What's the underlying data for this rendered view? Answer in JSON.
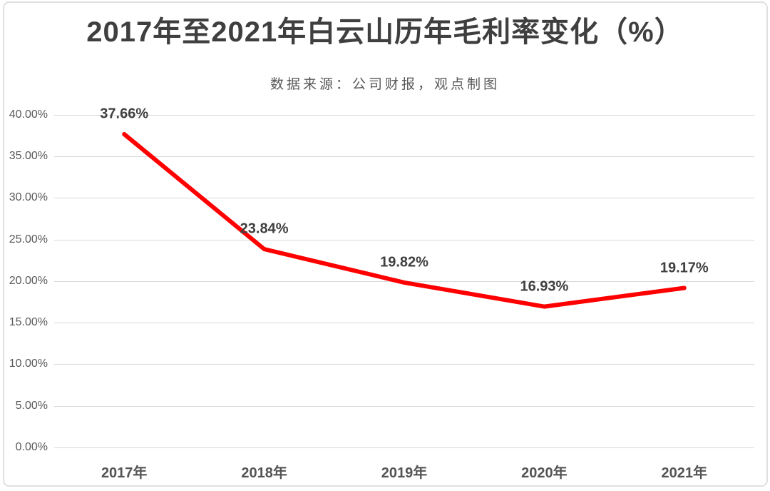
{
  "header": {
    "title": "2017年至2021年白云山历年毛利率变化（%）",
    "subtitle": "数据来源：公司财报，观点制图"
  },
  "colors": {
    "line": "#ff0000",
    "gridline": "#d9d9d9",
    "title_text": "#3f3f3f",
    "axis_text": "#595959",
    "card_border": "#e0e0e0",
    "background": "#ffffff"
  },
  "chart_data": {
    "type": "line",
    "title": "2017年至2021年白云山历年毛利率变化（%）",
    "subtitle": "数据来源：公司财报，观点制图",
    "categories": [
      "2017年",
      "2018年",
      "2019年",
      "2020年",
      "2021年"
    ],
    "series": [
      {
        "name": "毛利率",
        "values": [
          37.66,
          23.84,
          19.82,
          16.93,
          19.17
        ],
        "color": "#ff0000"
      }
    ],
    "data_labels": [
      "37.66%",
      "23.84%",
      "19.82%",
      "16.93%",
      "19.17%"
    ],
    "y_ticks": [
      "0.00%",
      "5.00%",
      "10.00%",
      "15.00%",
      "20.00%",
      "25.00%",
      "30.00%",
      "35.00%",
      "40.00%"
    ],
    "y_tick_values": [
      0,
      5,
      10,
      15,
      20,
      25,
      30,
      35,
      40
    ],
    "ylim": [
      0,
      40
    ],
    "xlabel": "",
    "ylabel": "",
    "grid": true,
    "legend": "none"
  }
}
